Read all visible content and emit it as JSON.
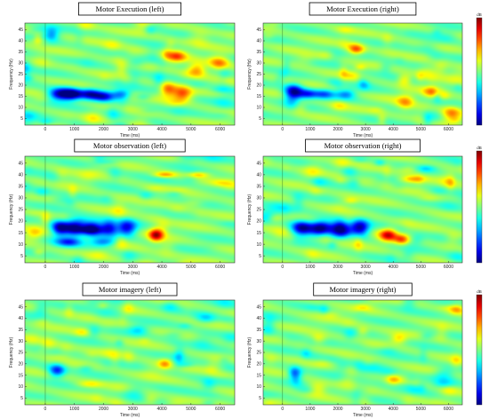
{
  "chart_data": [
    {
      "type": "heatmap",
      "title": "Motor Execution (left)",
      "xlabel": "Time (ms)",
      "ylabel": "Frequency (Hz)",
      "xlim": [
        -700,
        6500
      ],
      "ylim": [
        2,
        48
      ],
      "xticks": [
        0,
        1000,
        2000,
        3000,
        4000,
        5000,
        6000
      ],
      "yticks": [
        5,
        10,
        15,
        20,
        25,
        30,
        35,
        40,
        45
      ],
      "colorbar": false,
      "blobs": [
        {
          "time_ms": 500,
          "freq_hz": 16,
          "time_width_ms": 350,
          "freq_width_hz": 2.5,
          "level": -0.95
        },
        {
          "time_ms": 1000,
          "freq_hz": 16,
          "time_width_ms": 300,
          "freq_width_hz": 2.2,
          "level": -0.75
        },
        {
          "time_ms": 1550,
          "freq_hz": 16,
          "time_width_ms": 300,
          "freq_width_hz": 2.2,
          "level": -0.75
        },
        {
          "time_ms": 2000,
          "freq_hz": 15,
          "time_width_ms": 300,
          "freq_width_hz": 2.2,
          "level": -0.7
        },
        {
          "time_ms": 2600,
          "freq_hz": 16,
          "time_width_ms": 300,
          "freq_width_hz": 2,
          "level": -0.5
        },
        {
          "time_ms": 200,
          "freq_hz": 43,
          "time_width_ms": 250,
          "freq_width_hz": 3,
          "level": -0.4
        },
        {
          "time_ms": 4500,
          "freq_hz": 33,
          "time_width_ms": 300,
          "freq_width_hz": 2.5,
          "level": 0.55
        },
        {
          "time_ms": 4200,
          "freq_hz": 18,
          "time_width_ms": 250,
          "freq_width_hz": 3,
          "level": 0.5
        },
        {
          "time_ms": 4700,
          "freq_hz": 16,
          "time_width_ms": 300,
          "freq_width_hz": 3,
          "level": 0.6
        },
        {
          "time_ms": 5200,
          "freq_hz": 27,
          "time_width_ms": 300,
          "freq_width_hz": 3,
          "level": 0.5
        },
        {
          "time_ms": 6000,
          "freq_hz": 30,
          "time_width_ms": 300,
          "freq_width_hz": 3,
          "level": 0.5
        }
      ]
    },
    {
      "type": "heatmap",
      "title": "Motor Execution (right)",
      "xlabel": "Time (ms)",
      "ylabel": "Frequency (Hz)",
      "xlim": [
        -700,
        6500
      ],
      "ylim": [
        2,
        48
      ],
      "xticks": [
        0,
        1000,
        2000,
        3000,
        4000,
        5000,
        6000
      ],
      "yticks": [
        5,
        10,
        15,
        20,
        25,
        30,
        35,
        40,
        45
      ],
      "colorbar": true,
      "colorbar_label": "dB",
      "blobs": [
        {
          "time_ms": 400,
          "freq_hz": 17,
          "time_width_ms": 300,
          "freq_width_hz": 3,
          "level": -0.95
        },
        {
          "time_ms": 900,
          "freq_hz": 16,
          "time_width_ms": 300,
          "freq_width_hz": 2,
          "level": -0.6
        },
        {
          "time_ms": 1500,
          "freq_hz": 16,
          "time_width_ms": 350,
          "freq_width_hz": 2,
          "level": -0.5
        },
        {
          "time_ms": 2300,
          "freq_hz": 16,
          "time_width_ms": 300,
          "freq_width_hz": 2,
          "level": -0.45
        },
        {
          "time_ms": 2700,
          "freq_hz": 36,
          "time_width_ms": 250,
          "freq_width_hz": 2,
          "level": 0.45
        },
        {
          "time_ms": 4400,
          "freq_hz": 22,
          "time_width_ms": 250,
          "freq_width_hz": 2.5,
          "level": 0.45
        },
        {
          "time_ms": 5400,
          "freq_hz": 17,
          "time_width_ms": 300,
          "freq_width_hz": 2.5,
          "level": 0.45
        },
        {
          "time_ms": 6100,
          "freq_hz": 7,
          "time_width_ms": 300,
          "freq_width_hz": 3,
          "level": 0.45
        }
      ]
    },
    {
      "type": "heatmap",
      "title": "Motor observation (left)",
      "xlabel": "Time (ms)",
      "ylabel": "Frequency (Hz)",
      "xlim": [
        -700,
        6500
      ],
      "ylim": [
        2,
        48
      ],
      "xticks": [
        0,
        1000,
        2000,
        3000,
        4000,
        5000,
        6000
      ],
      "yticks": [
        5,
        10,
        15,
        20,
        25,
        30,
        35,
        40,
        45
      ],
      "colorbar": false,
      "blobs": [
        {
          "time_ms": 500,
          "freq_hz": 17,
          "time_width_ms": 280,
          "freq_width_hz": 3,
          "level": -0.95
        },
        {
          "time_ms": 1000,
          "freq_hz": 17,
          "time_width_ms": 300,
          "freq_width_hz": 3,
          "level": -0.9
        },
        {
          "time_ms": 1600,
          "freq_hz": 17,
          "time_width_ms": 300,
          "freq_width_hz": 3,
          "level": -0.9
        },
        {
          "time_ms": 2200,
          "freq_hz": 17,
          "time_width_ms": 300,
          "freq_width_hz": 3,
          "level": -0.85
        },
        {
          "time_ms": 2800,
          "freq_hz": 17,
          "time_width_ms": 300,
          "freq_width_hz": 3,
          "level": -0.8
        },
        {
          "time_ms": 800,
          "freq_hz": 11,
          "time_width_ms": 400,
          "freq_width_hz": 1.8,
          "level": -0.6
        },
        {
          "time_ms": 2000,
          "freq_hz": 11,
          "time_width_ms": 400,
          "freq_width_hz": 1.8,
          "level": -0.55
        },
        {
          "time_ms": 3800,
          "freq_hz": 14,
          "time_width_ms": 220,
          "freq_width_hz": 2.5,
          "level": 0.85
        },
        {
          "time_ms": 4100,
          "freq_hz": 40,
          "time_width_ms": 350,
          "freq_width_hz": 1.2,
          "level": 0.45
        },
        {
          "time_ms": 5200,
          "freq_hz": 40,
          "time_width_ms": 350,
          "freq_width_hz": 1.2,
          "level": 0.4
        }
      ]
    },
    {
      "type": "heatmap",
      "title": "Motor observation (right)",
      "xlabel": "Time (ms)",
      "ylabel": "Frequency (Hz)",
      "xlim": [
        -700,
        6500
      ],
      "ylim": [
        2,
        48
      ],
      "xticks": [
        0,
        1000,
        2000,
        3000,
        4000,
        5000,
        6000
      ],
      "yticks": [
        5,
        10,
        15,
        20,
        25,
        30,
        35,
        40,
        45
      ],
      "colorbar": true,
      "colorbar_label": "dB",
      "blobs": [
        {
          "time_ms": 700,
          "freq_hz": 17,
          "time_width_ms": 350,
          "freq_width_hz": 3,
          "level": -0.95
        },
        {
          "time_ms": 1400,
          "freq_hz": 17,
          "time_width_ms": 350,
          "freq_width_hz": 3,
          "level": -1.0
        },
        {
          "time_ms": 2100,
          "freq_hz": 17,
          "time_width_ms": 350,
          "freq_width_hz": 3,
          "level": -0.95
        },
        {
          "time_ms": 2800,
          "freq_hz": 17,
          "time_width_ms": 300,
          "freq_width_hz": 3,
          "level": -0.9
        },
        {
          "time_ms": 3800,
          "freq_hz": 14,
          "time_width_ms": 280,
          "freq_width_hz": 2.5,
          "level": 0.8
        },
        {
          "time_ms": 4300,
          "freq_hz": 12,
          "time_width_ms": 250,
          "freq_width_hz": 2,
          "level": 0.55
        },
        {
          "time_ms": 4700,
          "freq_hz": 38,
          "time_width_ms": 400,
          "freq_width_hz": 1.5,
          "level": 0.4
        }
      ]
    },
    {
      "type": "heatmap",
      "title": "Motor imagery (left)",
      "xlabel": "Time (ms)",
      "ylabel": "Frequency (Hz)",
      "xlim": [
        -700,
        6500
      ],
      "ylim": [
        2,
        48
      ],
      "xticks": [
        0,
        1000,
        2000,
        3000,
        4000,
        5000,
        6000
      ],
      "yticks": [
        5,
        10,
        15,
        20,
        25,
        30,
        35,
        40,
        45
      ],
      "colorbar": false,
      "blobs": [
        {
          "time_ms": 400,
          "freq_hz": 17,
          "time_width_ms": 250,
          "freq_width_hz": 2.5,
          "level": -0.7
        },
        {
          "time_ms": 4100,
          "freq_hz": 20,
          "time_width_ms": 200,
          "freq_width_hz": 2,
          "level": 0.4
        },
        {
          "time_ms": 1500,
          "freq_hz": 11,
          "time_width_ms": 400,
          "freq_width_hz": 1.5,
          "level": 0.25
        },
        {
          "time_ms": 3200,
          "freq_hz": 35,
          "time_width_ms": 300,
          "freq_width_hz": 2,
          "level": -0.3
        },
        {
          "time_ms": 5500,
          "freq_hz": 40,
          "time_width_ms": 300,
          "freq_width_hz": 2,
          "level": -0.3
        }
      ]
    },
    {
      "type": "heatmap",
      "title": "Motor imagery (right)",
      "xlabel": "Time (ms)",
      "ylabel": "Frequency (Hz)",
      "xlim": [
        -700,
        6500
      ],
      "ylim": [
        2,
        48
      ],
      "xticks": [
        0,
        1000,
        2000,
        3000,
        4000,
        5000,
        6000
      ],
      "yticks": [
        5,
        10,
        15,
        20,
        25,
        30,
        35,
        40,
        45
      ],
      "colorbar": true,
      "colorbar_label": "dB",
      "blobs": [
        {
          "time_ms": 400,
          "freq_hz": 16,
          "time_width_ms": 250,
          "freq_width_hz": 2.5,
          "level": -0.6
        },
        {
          "time_ms": 1200,
          "freq_hz": 31,
          "time_width_ms": 300,
          "freq_width_hz": 2,
          "level": 0.35
        },
        {
          "time_ms": 4000,
          "freq_hz": 13,
          "time_width_ms": 250,
          "freq_width_hz": 2,
          "level": 0.35
        },
        {
          "time_ms": 4200,
          "freq_hz": 31,
          "time_width_ms": 250,
          "freq_width_hz": 2,
          "level": 0.3
        },
        {
          "time_ms": 6300,
          "freq_hz": 44,
          "time_width_ms": 250,
          "freq_width_hz": 2,
          "level": 0.4
        }
      ]
    }
  ]
}
